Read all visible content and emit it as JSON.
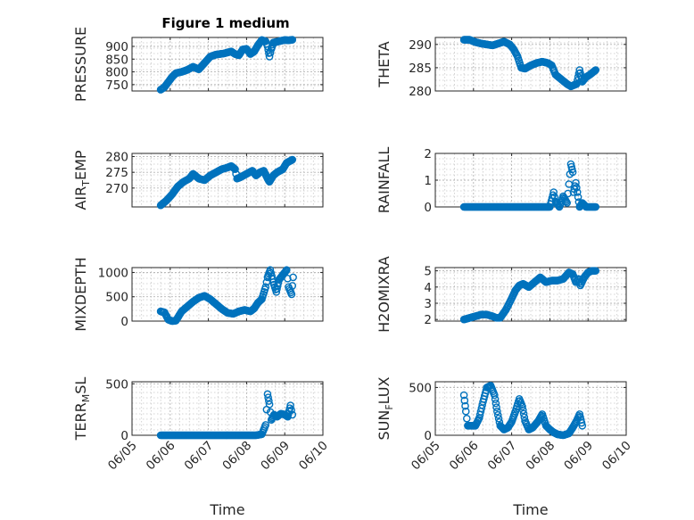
{
  "figure": {
    "title": "Figure 1 medium",
    "marker_color": "#0072bd"
  },
  "chart_data": [
    {
      "type": "scatter",
      "ylabel": "PRESSURE",
      "xlabel": "",
      "x_range": [
        "06/05",
        "06/10"
      ],
      "ylim": [
        725,
        935
      ],
      "yticks": [
        750,
        800,
        850,
        900
      ],
      "xticks": [
        "06/05",
        "06/06",
        "06/07",
        "06/08",
        "06/09",
        "06/10"
      ],
      "show_xtick_labels": false,
      "grid": true,
      "points": [
        {
          "t": 0.75,
          "y": 730
        },
        {
          "t": 0.85,
          "y": 740
        },
        {
          "t": 0.95,
          "y": 760
        },
        {
          "t": 1.05,
          "y": 780
        },
        {
          "t": 1.15,
          "y": 795
        },
        {
          "t": 1.3,
          "y": 800
        },
        {
          "t": 1.45,
          "y": 808
        },
        {
          "t": 1.6,
          "y": 820
        },
        {
          "t": 1.75,
          "y": 810
        },
        {
          "t": 1.9,
          "y": 835
        },
        {
          "t": 2.05,
          "y": 860
        },
        {
          "t": 2.2,
          "y": 868
        },
        {
          "t": 2.4,
          "y": 872
        },
        {
          "t": 2.6,
          "y": 880
        },
        {
          "t": 2.7,
          "y": 870
        },
        {
          "t": 2.8,
          "y": 865
        },
        {
          "t": 2.9,
          "y": 888
        },
        {
          "t": 3.0,
          "y": 890
        },
        {
          "t": 3.1,
          "y": 870
        },
        {
          "t": 3.2,
          "y": 880
        },
        {
          "t": 3.3,
          "y": 905
        },
        {
          "t": 3.4,
          "y": 925
        },
        {
          "t": 3.5,
          "y": 920
        },
        {
          "t": 3.55,
          "y": 900
        },
        {
          "t": 3.6,
          "y": 860
        },
        {
          "t": 3.65,
          "y": 890
        },
        {
          "t": 3.7,
          "y": 915
        },
        {
          "t": 3.8,
          "y": 918
        },
        {
          "t": 3.9,
          "y": 922
        },
        {
          "t": 4.0,
          "y": 925
        },
        {
          "t": 4.1,
          "y": 924
        },
        {
          "t": 4.2,
          "y": 926
        }
      ]
    },
    {
      "type": "scatter",
      "ylabel": "THETA",
      "xlabel": "",
      "x_range": [
        "06/05",
        "06/10"
      ],
      "ylim": [
        280,
        291.5
      ],
      "yticks": [
        280,
        285,
        290
      ],
      "xticks": [
        "06/05",
        "06/06",
        "06/07",
        "06/08",
        "06/09",
        "06/10"
      ],
      "show_xtick_labels": false,
      "grid": true,
      "points": [
        {
          "t": 0.75,
          "y": 291
        },
        {
          "t": 0.9,
          "y": 291
        },
        {
          "t": 1.05,
          "y": 290.5
        },
        {
          "t": 1.2,
          "y": 290.2
        },
        {
          "t": 1.35,
          "y": 290
        },
        {
          "t": 1.5,
          "y": 289.8
        },
        {
          "t": 1.65,
          "y": 290.2
        },
        {
          "t": 1.8,
          "y": 290.6
        },
        {
          "t": 1.95,
          "y": 290
        },
        {
          "t": 2.05,
          "y": 289
        },
        {
          "t": 2.15,
          "y": 287.5
        },
        {
          "t": 2.25,
          "y": 285
        },
        {
          "t": 2.35,
          "y": 284.8
        },
        {
          "t": 2.5,
          "y": 285.5
        },
        {
          "t": 2.65,
          "y": 286
        },
        {
          "t": 2.8,
          "y": 286.3
        },
        {
          "t": 2.95,
          "y": 286
        },
        {
          "t": 3.05,
          "y": 285.5
        },
        {
          "t": 3.15,
          "y": 283.5
        },
        {
          "t": 3.3,
          "y": 282.5
        },
        {
          "t": 3.45,
          "y": 281.5
        },
        {
          "t": 3.55,
          "y": 281
        },
        {
          "t": 3.7,
          "y": 281.5
        },
        {
          "t": 3.78,
          "y": 284.5
        },
        {
          "t": 3.85,
          "y": 282
        },
        {
          "t": 3.95,
          "y": 283
        },
        {
          "t": 4.05,
          "y": 283.5
        },
        {
          "t": 4.2,
          "y": 284.5
        }
      ]
    },
    {
      "type": "scatter",
      "ylabel": "AIR_TEMP",
      "xlabel": "",
      "x_range": [
        "06/05",
        "06/10"
      ],
      "ylim": [
        264,
        281
      ],
      "yticks": [
        270,
        275,
        280
      ],
      "xticks": [
        "06/05",
        "06/06",
        "06/07",
        "06/08",
        "06/09",
        "06/10"
      ],
      "show_xtick_labels": false,
      "grid": true,
      "points": [
        {
          "t": 0.75,
          "y": 264.5
        },
        {
          "t": 0.9,
          "y": 266
        },
        {
          "t": 1.05,
          "y": 268
        },
        {
          "t": 1.2,
          "y": 270.5
        },
        {
          "t": 1.35,
          "y": 272
        },
        {
          "t": 1.5,
          "y": 273
        },
        {
          "t": 1.6,
          "y": 274.5
        },
        {
          "t": 1.75,
          "y": 273
        },
        {
          "t": 1.9,
          "y": 272.5
        },
        {
          "t": 2.05,
          "y": 274
        },
        {
          "t": 2.2,
          "y": 275
        },
        {
          "t": 2.35,
          "y": 276
        },
        {
          "t": 2.5,
          "y": 276.5
        },
        {
          "t": 2.6,
          "y": 277
        },
        {
          "t": 2.7,
          "y": 276
        },
        {
          "t": 2.75,
          "y": 273
        },
        {
          "t": 2.85,
          "y": 273.5
        },
        {
          "t": 3.0,
          "y": 274.5
        },
        {
          "t": 3.15,
          "y": 275.5
        },
        {
          "t": 3.25,
          "y": 274
        },
        {
          "t": 3.35,
          "y": 275
        },
        {
          "t": 3.45,
          "y": 275.5
        },
        {
          "t": 3.55,
          "y": 273
        },
        {
          "t": 3.6,
          "y": 272
        },
        {
          "t": 3.7,
          "y": 274
        },
        {
          "t": 3.8,
          "y": 275
        },
        {
          "t": 3.95,
          "y": 276
        },
        {
          "t": 4.05,
          "y": 278
        },
        {
          "t": 4.2,
          "y": 279
        }
      ]
    },
    {
      "type": "scatter",
      "ylabel": "RAINFALL",
      "xlabel": "",
      "x_range": [
        "06/05",
        "06/10"
      ],
      "ylim": [
        0,
        2
      ],
      "yticks": [
        0,
        1,
        2
      ],
      "xticks": [
        "06/05",
        "06/06",
        "06/07",
        "06/08",
        "06/09",
        "06/10"
      ],
      "show_xtick_labels": false,
      "grid": true,
      "points": [
        {
          "t": 0.75,
          "y": 0
        },
        {
          "t": 1.0,
          "y": 0
        },
        {
          "t": 1.25,
          "y": 0
        },
        {
          "t": 1.5,
          "y": 0
        },
        {
          "t": 1.75,
          "y": 0
        },
        {
          "t": 2.0,
          "y": 0
        },
        {
          "t": 2.25,
          "y": 0
        },
        {
          "t": 2.5,
          "y": 0
        },
        {
          "t": 2.75,
          "y": 0
        },
        {
          "t": 3.0,
          "y": 0
        },
        {
          "t": 3.1,
          "y": 0.55
        },
        {
          "t": 3.15,
          "y": 0.2
        },
        {
          "t": 3.25,
          "y": 0
        },
        {
          "t": 3.35,
          "y": 0.4
        },
        {
          "t": 3.45,
          "y": 0.15
        },
        {
          "t": 3.5,
          "y": 0.85
        },
        {
          "t": 3.55,
          "y": 1.6
        },
        {
          "t": 3.6,
          "y": 1.3
        },
        {
          "t": 3.62,
          "y": 0.55
        },
        {
          "t": 3.68,
          "y": 0.9
        },
        {
          "t": 3.72,
          "y": 0.55
        },
        {
          "t": 3.78,
          "y": 0
        },
        {
          "t": 3.85,
          "y": 0.15
        },
        {
          "t": 3.95,
          "y": 0
        },
        {
          "t": 4.1,
          "y": 0
        },
        {
          "t": 4.2,
          "y": 0
        }
      ]
    },
    {
      "type": "scatter",
      "ylabel": "MIXDEPTH",
      "xlabel": "",
      "x_range": [
        "06/05",
        "06/10"
      ],
      "ylim": [
        0,
        1100
      ],
      "yticks": [
        0,
        500,
        1000
      ],
      "xticks": [
        "06/05",
        "06/06",
        "06/07",
        "06/08",
        "06/09",
        "06/10"
      ],
      "show_xtick_labels": false,
      "grid": true,
      "points": [
        {
          "t": 0.75,
          "y": 200
        },
        {
          "t": 0.85,
          "y": 180
        },
        {
          "t": 0.95,
          "y": 30
        },
        {
          "t": 1.05,
          "y": 0
        },
        {
          "t": 1.15,
          "y": 10
        },
        {
          "t": 1.3,
          "y": 200
        },
        {
          "t": 1.45,
          "y": 300
        },
        {
          "t": 1.6,
          "y": 400
        },
        {
          "t": 1.75,
          "y": 480
        },
        {
          "t": 1.9,
          "y": 520
        },
        {
          "t": 2.05,
          "y": 450
        },
        {
          "t": 2.2,
          "y": 350
        },
        {
          "t": 2.35,
          "y": 250
        },
        {
          "t": 2.5,
          "y": 170
        },
        {
          "t": 2.65,
          "y": 150
        },
        {
          "t": 2.8,
          "y": 200
        },
        {
          "t": 2.95,
          "y": 230
        },
        {
          "t": 3.1,
          "y": 200
        },
        {
          "t": 3.2,
          "y": 260
        },
        {
          "t": 3.3,
          "y": 380
        },
        {
          "t": 3.4,
          "y": 450
        },
        {
          "t": 3.5,
          "y": 700
        },
        {
          "t": 3.55,
          "y": 900
        },
        {
          "t": 3.62,
          "y": 1050
        },
        {
          "t": 3.7,
          "y": 800
        },
        {
          "t": 3.78,
          "y": 600
        },
        {
          "t": 3.85,
          "y": 850
        },
        {
          "t": 3.95,
          "y": 950
        },
        {
          "t": 4.05,
          "y": 1050
        },
        {
          "t": 4.1,
          "y": 700
        },
        {
          "t": 4.18,
          "y": 550
        },
        {
          "t": 4.22,
          "y": 900
        }
      ]
    },
    {
      "type": "scatter",
      "ylabel": "H2OMIXRA",
      "xlabel": "",
      "x_range": [
        "06/05",
        "06/10"
      ],
      "ylim": [
        1.9,
        5.2
      ],
      "yticks": [
        2,
        3,
        4,
        5
      ],
      "xticks": [
        "06/05",
        "06/06",
        "06/07",
        "06/08",
        "06/09",
        "06/10"
      ],
      "show_xtick_labels": false,
      "grid": true,
      "points": [
        {
          "t": 0.75,
          "y": 2
        },
        {
          "t": 0.9,
          "y": 2.1
        },
        {
          "t": 1.05,
          "y": 2.2
        },
        {
          "t": 1.2,
          "y": 2.3
        },
        {
          "t": 1.35,
          "y": 2.3
        },
        {
          "t": 1.5,
          "y": 2.2
        },
        {
          "t": 1.6,
          "y": 2.1
        },
        {
          "t": 1.7,
          "y": 2.1
        },
        {
          "t": 1.85,
          "y": 2.6
        },
        {
          "t": 2.0,
          "y": 3.3
        },
        {
          "t": 2.1,
          "y": 3.8
        },
        {
          "t": 2.2,
          "y": 4.1
        },
        {
          "t": 2.3,
          "y": 4.2
        },
        {
          "t": 2.45,
          "y": 4.0
        },
        {
          "t": 2.6,
          "y": 4.3
        },
        {
          "t": 2.75,
          "y": 4.6
        },
        {
          "t": 2.9,
          "y": 4.3
        },
        {
          "t": 3.05,
          "y": 4.4
        },
        {
          "t": 3.2,
          "y": 4.4
        },
        {
          "t": 3.35,
          "y": 4.5
        },
        {
          "t": 3.5,
          "y": 4.9
        },
        {
          "t": 3.6,
          "y": 4.8
        },
        {
          "t": 3.68,
          "y": 4.3
        },
        {
          "t": 3.75,
          "y": 4.5
        },
        {
          "t": 3.8,
          "y": 4.1
        },
        {
          "t": 3.9,
          "y": 4.6
        },
        {
          "t": 4.0,
          "y": 4.9
        },
        {
          "t": 4.1,
          "y": 5.0
        },
        {
          "t": 4.2,
          "y": 5.0
        }
      ]
    },
    {
      "type": "scatter",
      "ylabel": "TERR_MSL",
      "xlabel": "Time",
      "x_range": [
        "06/05",
        "06/10"
      ],
      "ylim": [
        0,
        520
      ],
      "yticks": [
        0,
        500
      ],
      "xticks": [
        "06/05",
        "06/06",
        "06/07",
        "06/08",
        "06/09",
        "06/10"
      ],
      "show_xtick_labels": true,
      "grid": true,
      "points": [
        {
          "t": 0.75,
          "y": 0
        },
        {
          "t": 1.0,
          "y": 0
        },
        {
          "t": 1.25,
          "y": 0
        },
        {
          "t": 1.5,
          "y": 0
        },
        {
          "t": 1.75,
          "y": 0
        },
        {
          "t": 2.0,
          "y": 0
        },
        {
          "t": 2.25,
          "y": 0
        },
        {
          "t": 2.5,
          "y": 0
        },
        {
          "t": 2.75,
          "y": 0
        },
        {
          "t": 3.0,
          "y": 0
        },
        {
          "t": 3.25,
          "y": 0
        },
        {
          "t": 3.4,
          "y": 10
        },
        {
          "t": 3.5,
          "y": 100
        },
        {
          "t": 3.55,
          "y": 400
        },
        {
          "t": 3.6,
          "y": 300
        },
        {
          "t": 3.65,
          "y": 150
        },
        {
          "t": 3.72,
          "y": 200
        },
        {
          "t": 3.8,
          "y": 180
        },
        {
          "t": 3.9,
          "y": 210
        },
        {
          "t": 4.0,
          "y": 200
        },
        {
          "t": 4.08,
          "y": 180
        },
        {
          "t": 4.15,
          "y": 290
        },
        {
          "t": 4.2,
          "y": 200
        }
      ]
    },
    {
      "type": "scatter",
      "ylabel": "SUN_FLUX",
      "xlabel": "Time",
      "x_range": [
        "06/05",
        "06/10"
      ],
      "ylim": [
        0,
        560
      ],
      "yticks": [
        0,
        500
      ],
      "xticks": [
        "06/05",
        "06/06",
        "06/07",
        "06/08",
        "06/09",
        "06/10"
      ],
      "show_xtick_labels": true,
      "grid": true,
      "points": [
        {
          "t": 0.75,
          "y": 420
        },
        {
          "t": 0.8,
          "y": 250
        },
        {
          "t": 0.85,
          "y": 100
        },
        {
          "t": 0.95,
          "y": 100
        },
        {
          "t": 1.05,
          "y": 100
        },
        {
          "t": 1.15,
          "y": 180
        },
        {
          "t": 1.25,
          "y": 350
        },
        {
          "t": 1.35,
          "y": 500
        },
        {
          "t": 1.45,
          "y": 520
        },
        {
          "t": 1.55,
          "y": 420
        },
        {
          "t": 1.62,
          "y": 250
        },
        {
          "t": 1.7,
          "y": 100
        },
        {
          "t": 1.8,
          "y": 60
        },
        {
          "t": 1.9,
          "y": 80
        },
        {
          "t": 2.0,
          "y": 140
        },
        {
          "t": 2.1,
          "y": 250
        },
        {
          "t": 2.2,
          "y": 380
        },
        {
          "t": 2.28,
          "y": 300
        },
        {
          "t": 2.35,
          "y": 150
        },
        {
          "t": 2.45,
          "y": 60
        },
        {
          "t": 2.55,
          "y": 80
        },
        {
          "t": 2.7,
          "y": 150
        },
        {
          "t": 2.8,
          "y": 220
        },
        {
          "t": 2.9,
          "y": 100
        },
        {
          "t": 3.0,
          "y": 60
        },
        {
          "t": 3.1,
          "y": 30
        },
        {
          "t": 3.2,
          "y": 10
        },
        {
          "t": 3.35,
          "y": 0
        },
        {
          "t": 3.5,
          "y": 20
        },
        {
          "t": 3.6,
          "y": 80
        },
        {
          "t": 3.7,
          "y": 150
        },
        {
          "t": 3.78,
          "y": 220
        },
        {
          "t": 3.85,
          "y": 100
        }
      ]
    }
  ]
}
